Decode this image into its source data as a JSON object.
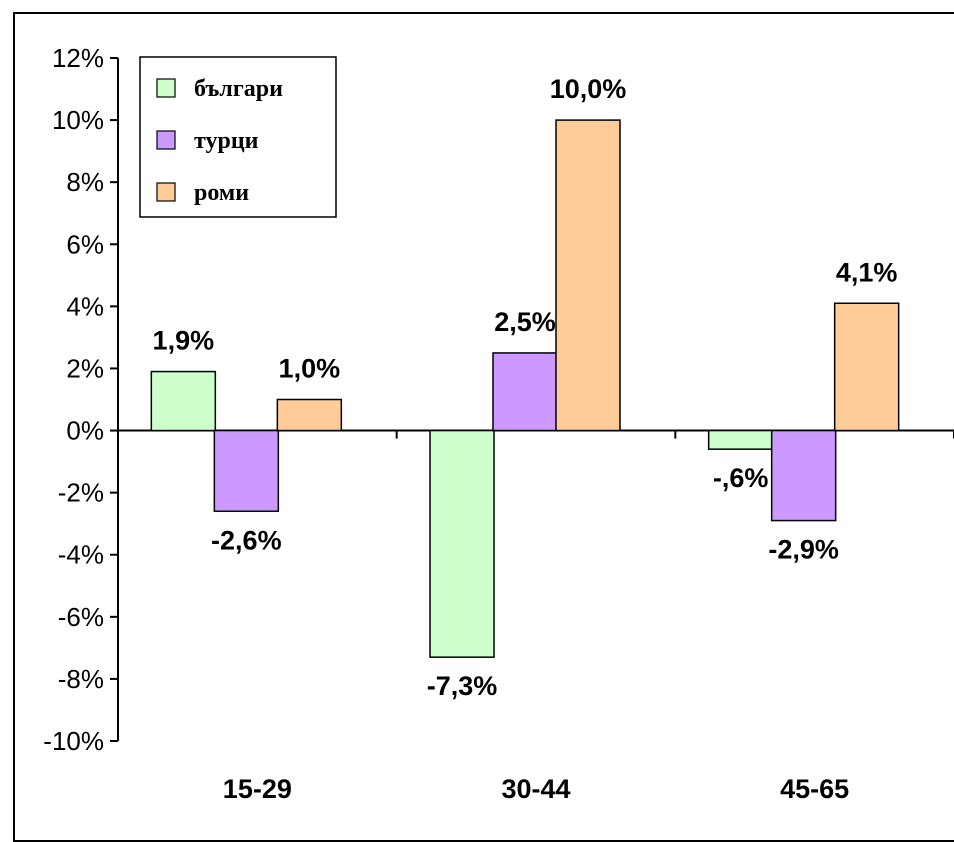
{
  "chart_data": {
    "type": "bar",
    "categories": [
      "15-29",
      "30-44",
      "45-65"
    ],
    "series": [
      {
        "name": "българи",
        "color": "#ccffcc",
        "values": [
          1.9,
          -7.3,
          -0.6
        ],
        "labels": [
          "1,9%",
          "-7,3%",
          "-,6%"
        ]
      },
      {
        "name": "турци",
        "color": "#cc99ff",
        "values": [
          -2.6,
          2.5,
          -2.9
        ],
        "labels": [
          "-2,6%",
          "2,5%",
          "-2,9%"
        ]
      },
      {
        "name": "роми",
        "color": "#ffcc99",
        "values": [
          1.0,
          10.0,
          4.1
        ],
        "labels": [
          "1,0%",
          "10,0%",
          "4,1%"
        ]
      }
    ],
    "ylim": [
      -10,
      12
    ],
    "yticks": [
      12,
      10,
      8,
      6,
      4,
      2,
      0,
      -2,
      -4,
      -6,
      -8,
      -10
    ],
    "ytick_labels": [
      "12%",
      "10%",
      "8%",
      "6%",
      "4%",
      "2%",
      "0%",
      "-2%",
      "-4%",
      "-6%",
      "-8%",
      "-10%"
    ],
    "legend_position": "top-left",
    "grid": false
  }
}
